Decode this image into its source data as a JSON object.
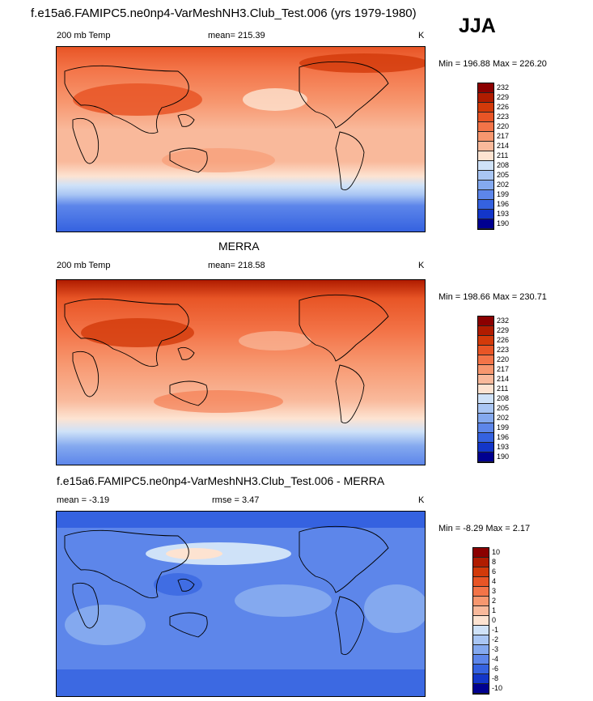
{
  "header": {
    "title": "f.e15a6.FAMIPC5.ne0np4-VarMeshNH3.Club_Test.006 (yrs 1979-1980)",
    "season": "JJA"
  },
  "panels": [
    {
      "title": "",
      "left_label": "200 mb Temp",
      "center_label": "mean= 215.39",
      "right_label": "K",
      "minmax": "Min = 196.88 Max = 226.20",
      "levels": [
        "232",
        "229",
        "226",
        "223",
        "220",
        "217",
        "214",
        "211",
        "208",
        "205",
        "202",
        "199",
        "196",
        "193",
        "190"
      ]
    },
    {
      "title": "MERRA",
      "left_label": "200 mb Temp",
      "center_label": "mean= 218.58",
      "right_label": "K",
      "minmax": "Min = 198.66 Max = 230.71",
      "levels": [
        "232",
        "229",
        "226",
        "223",
        "220",
        "217",
        "214",
        "211",
        "208",
        "205",
        "202",
        "199",
        "196",
        "193",
        "190"
      ]
    },
    {
      "title": "f.e15a6.FAMIPC5.ne0np4-VarMeshNH3.Club_Test.006 - MERRA",
      "left_label": "mean =  -3.19",
      "center_label": "rmse =   3.47",
      "right_label": "K",
      "minmax": "Min =  -8.29 Max =   2.17",
      "levels": [
        "10",
        "8",
        "6",
        "4",
        "3",
        "2",
        "1",
        "0",
        "-1",
        "-2",
        "-3",
        "-4",
        "-6",
        "-8",
        "-10"
      ]
    }
  ],
  "colors": {
    "scale": [
      "#8b0000",
      "#b01c00",
      "#d23a0a",
      "#e85526",
      "#f37448",
      "#f7976f",
      "#f9b99b",
      "#fde3d1",
      "#cfe2f8",
      "#a9c6f4",
      "#84a9ef",
      "#5d86ea",
      "#3562e0",
      "#1336c9",
      "#000090"
    ],
    "land": "none",
    "coast": "#000"
  }
}
